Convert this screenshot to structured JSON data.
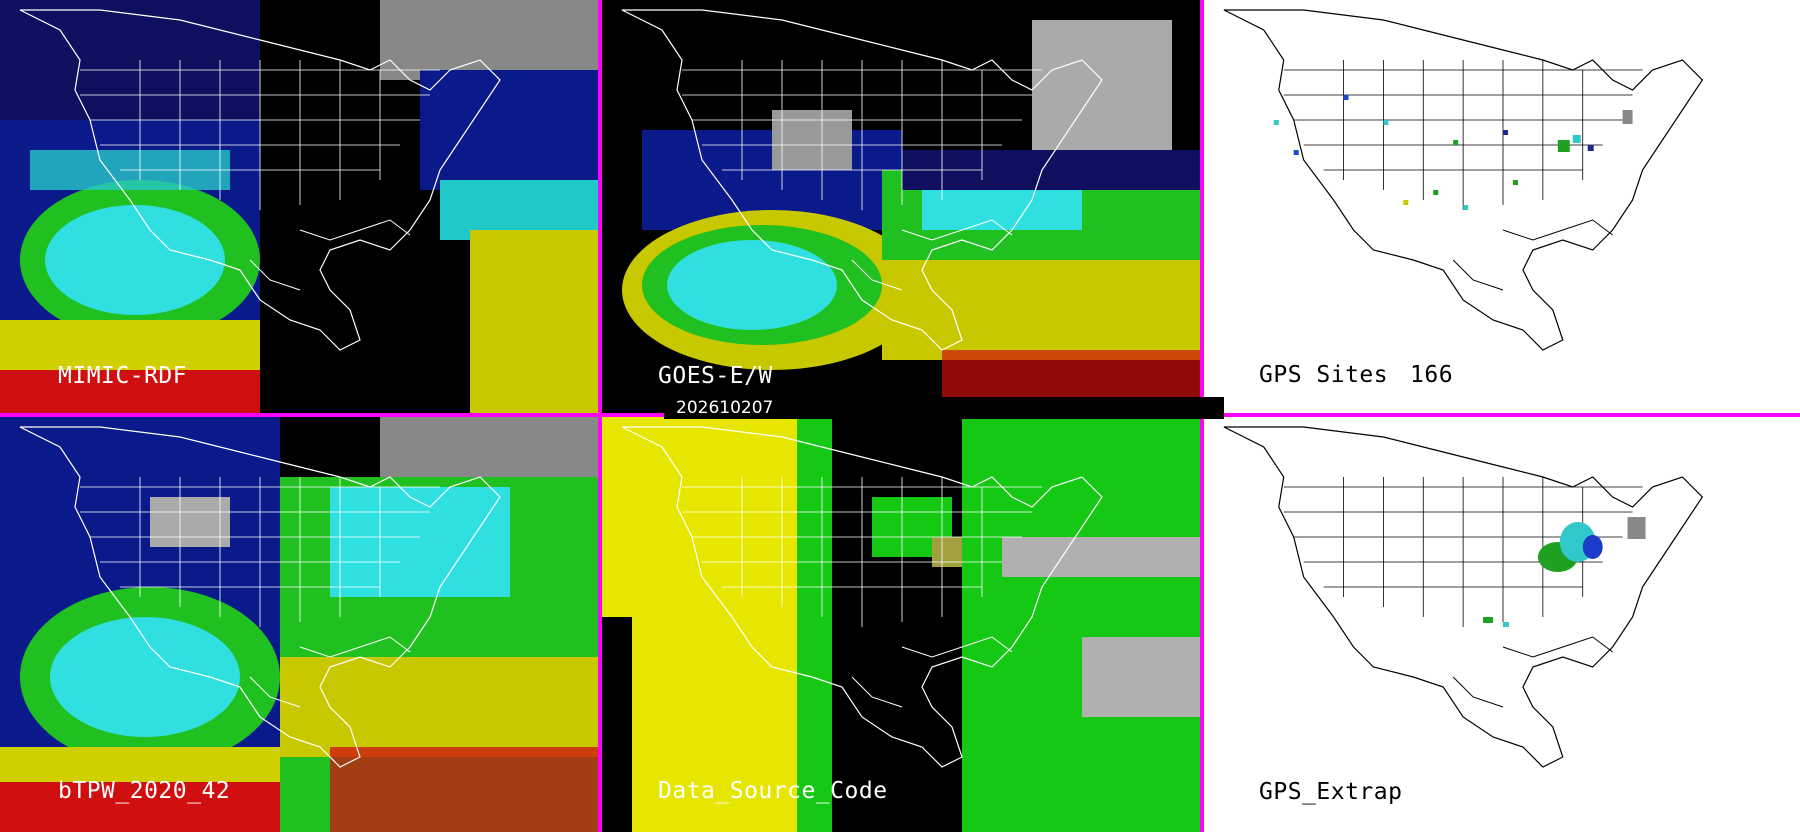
{
  "panels": {
    "top_left": {
      "label": "MIMIC-RDF"
    },
    "top_middle": {
      "label": "GOES-E/W"
    },
    "top_right": {
      "label": "GPS Sites",
      "count": "166"
    },
    "bottom_left": {
      "label": "bTPW_2020_42"
    },
    "bottom_middle": {
      "label": "Data_Source_Code"
    },
    "bottom_right": {
      "label": "GPS_Extrap"
    }
  },
  "timestamp": "202610207",
  "colors": {
    "divider": "#ff00ff",
    "very_dry": "#101070",
    "dry_blue": "#1a3cc8",
    "cyan": "#30e0e0",
    "green": "#20c820",
    "yellow": "#e0e000",
    "red": "#e01010",
    "gray": "#b0b0b0",
    "source_yellow": "#e6e600",
    "source_green": "#14c814"
  }
}
